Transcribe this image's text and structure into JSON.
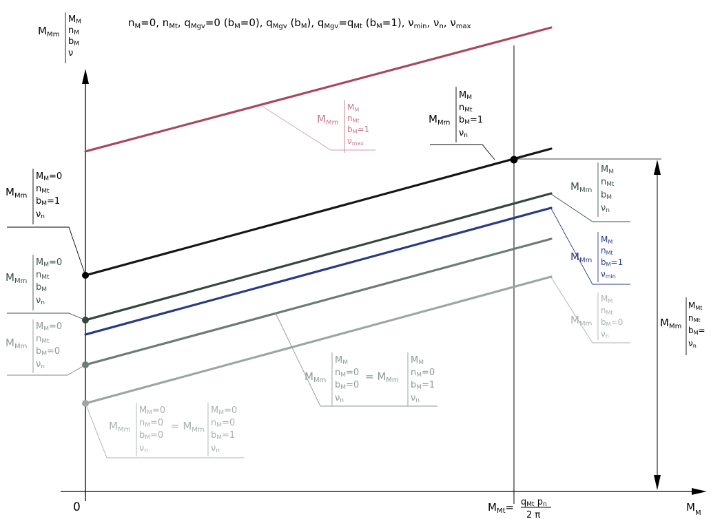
{
  "chart_data": {
    "type": "line",
    "title": "n_M=0, n_Mt, q_Mgv=0 (b_M=0), q_Mgv (b_M), q_Mgv=q_Mt (b_M=1), ν_min, ν_n, ν_max",
    "x_origin_label": "0",
    "x_mark_label": "M_Mt = q_Mt p_n / 2π",
    "x_axis_label": "M_M",
    "y_axis_label": [
      "M_Mm",
      "M_M",
      "n_M",
      "b_M",
      "ν"
    ],
    "grid": false,
    "series": [
      {
        "color": "#a8485e",
        "y0": 220,
        "y1": 40,
        "x_end": 800,
        "label_left": "",
        "label_right": "M_Mm | M_M, n_Mt, b_M=1, ν_max"
      },
      {
        "color": "#151515",
        "y0": 400,
        "y1": 216,
        "x_end": 800,
        "label_left": "M_Mm | M_M=0, n_Mt, b_M=1, ν_n",
        "label_right": "M_Mm | M_M, n_Mt, b_M=1, ν_n"
      },
      {
        "color": "#344640",
        "y0": 465,
        "y1": 281,
        "x_end": 800,
        "label_left": "M_Mm | M_M=0, n_Mt, b_M, ν_n",
        "label_right": "M_Mm | M_M, n_Mt, b_M, ν_n"
      },
      {
        "color": "#283a84",
        "y0": 486,
        "y1": 302,
        "x_end": 800,
        "label_left": "",
        "label_right": "M_Mm | M_M, n_Mt, b_M=1, ν_min"
      },
      {
        "color": "#6c7b78",
        "y0": 530,
        "y1": 347,
        "x_end": 800,
        "label_left": "M_Mm | M_M=0, n_Mt, b_M=0, ν_n",
        "label_right": "M_Mm | M_M, n_M=0, b_M=0, ν_n = M_Mm | M_M, n_M=0, b_M=1, ν_n"
      },
      {
        "color": "#9ea6a5",
        "y0": 586,
        "y1": 402,
        "x_end": 800,
        "label_left": "M_Mm | M_M=0, n_M=0, b_M=0, ν_n = M_Mm | M_M=0, n_M=0, b_M=1, ν_n",
        "label_right": "M_Mm | M_M, n_Mt, b_M=0, ν_n"
      }
    ]
  }
}
